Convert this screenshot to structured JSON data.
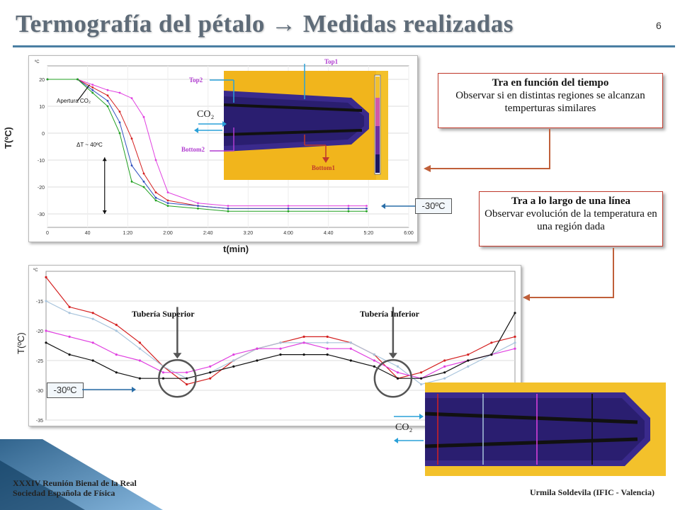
{
  "title": "Termografía del pétalo → Medidas realizadas",
  "page_number": "6",
  "top_chart": {
    "y_axis_title": "T(ºC)",
    "x_axis_title": "t(min)",
    "y_unit": "ºC",
    "y_ticks": [
      "20",
      "10",
      "0",
      "-10",
      "-20",
      "-30"
    ],
    "x_ticks": [
      "0",
      "40",
      "1:20",
      "2:00",
      "2:40",
      "3:20",
      "4:00",
      "4:40",
      "5:20",
      "6:00"
    ],
    "annotation_apertura": "Apertura CO₂",
    "annotation_delta": "ΔT ~ 40ºC",
    "thermal_labels": {
      "top1": "Top1",
      "top2": "Top2",
      "bottom1": "Bottom1",
      "bottom2": "Bottom2",
      "co2": "CO₂"
    },
    "colors": {
      "magenta": "#e040e0",
      "red": "#d42020",
      "blue": "#3050c0",
      "green": "#20a020",
      "black": "#111111"
    }
  },
  "bottom_chart": {
    "y_axis_title": "T(ºC)",
    "y_unit": "ºC",
    "y_ticks": [
      "-15",
      "-20",
      "-25",
      "-30",
      "-35"
    ],
    "label_superior": "Tubería Superior",
    "label_inferior": "Tubería Inferior",
    "colors": {
      "red": "#d42020",
      "lightblue": "#a8c4dc",
      "magenta": "#e040e0",
      "black": "#111111"
    }
  },
  "callout_time": {
    "head": "Tra en función del tiempo",
    "body": "Observar si en distintas regiones se alcanzan temperturas similares"
  },
  "callout_line": {
    "head": "Tra a lo largo de una línea",
    "body": "Observar evolución de la temperatura en una región dada"
  },
  "tag_top": "-30ºC",
  "tag_bottom": "-30ºC",
  "bottom_co2": "CO₂",
  "footer_left": "XXXIV Reunión Bienal de la Real Sociedad Española de Física",
  "footer_right": "Urmila Soldevila (IFIC - Valencia)",
  "chart_data": [
    {
      "type": "line",
      "title": "",
      "xlabel": "t(min)",
      "ylabel": "T(ºC)",
      "ylim": [
        -35,
        25
      ],
      "x": [
        0,
        0.5,
        0.75,
        1.0,
        1.2,
        1.4,
        1.6,
        1.8,
        2.0,
        2.5,
        3.0,
        4.0,
        5.0,
        5.3
      ],
      "series": [
        {
          "name": "",
          "color": "#e040e0",
          "values": [
            20,
            20,
            18,
            16,
            15,
            13,
            6,
            -10,
            -22,
            -26,
            -27,
            -27,
            -27,
            -27
          ]
        },
        {
          "name": "",
          "color": "#d42020",
          "values": [
            20,
            20,
            17,
            14,
            8,
            -2,
            -15,
            -22,
            -25,
            -27,
            -28,
            -28,
            -28,
            -28
          ]
        },
        {
          "name": "",
          "color": "#3050c0",
          "values": [
            20,
            20,
            16,
            12,
            4,
            -12,
            -18,
            -24,
            -26,
            -27,
            -28,
            -28,
            -28,
            -28
          ]
        },
        {
          "name": "",
          "color": "#20a020",
          "values": [
            20,
            20,
            15,
            10,
            0,
            -18,
            -20,
            -25,
            -27,
            -28,
            -29,
            -29,
            -29,
            -29
          ]
        }
      ]
    },
    {
      "type": "line",
      "title": "",
      "xlabel": "",
      "ylabel": "T(ºC)",
      "ylim": [
        -35,
        -10
      ],
      "x": [
        0,
        0.05,
        0.1,
        0.15,
        0.2,
        0.25,
        0.3,
        0.35,
        0.4,
        0.45,
        0.5,
        0.55,
        0.6,
        0.65,
        0.7,
        0.75,
        0.8,
        0.85,
        0.9,
        0.95,
        1.0
      ],
      "series": [
        {
          "name": "",
          "color": "#d42020",
          "values": [
            -11,
            -16,
            -17,
            -19,
            -22,
            -26,
            -29,
            -28,
            -25,
            -23,
            -22,
            -21,
            -21,
            -22,
            -24,
            -28,
            -27,
            -25,
            -24,
            -22,
            -21
          ]
        },
        {
          "name": "",
          "color": "#a8c4dc",
          "values": [
            -15,
            -17,
            -18,
            -20,
            -23,
            -26,
            -28,
            -27,
            -25,
            -23,
            -22,
            -22,
            -22,
            -22,
            -24,
            -26,
            -29,
            -28,
            -26,
            -24,
            -22
          ]
        },
        {
          "name": "",
          "color": "#e040e0",
          "values": [
            -20,
            -21,
            -22,
            -24,
            -25,
            -27,
            -27,
            -26,
            -24,
            -23,
            -23,
            -22,
            -23,
            -23,
            -25,
            -27,
            -28,
            -26,
            -25,
            -24,
            -23
          ]
        },
        {
          "name": "",
          "color": "#111111",
          "values": [
            -22,
            -24,
            -25,
            -27,
            -28,
            -28,
            -28,
            -27,
            -26,
            -25,
            -24,
            -24,
            -24,
            -25,
            -26,
            -28,
            -28,
            -27,
            -25,
            -24,
            -17
          ]
        }
      ]
    }
  ]
}
